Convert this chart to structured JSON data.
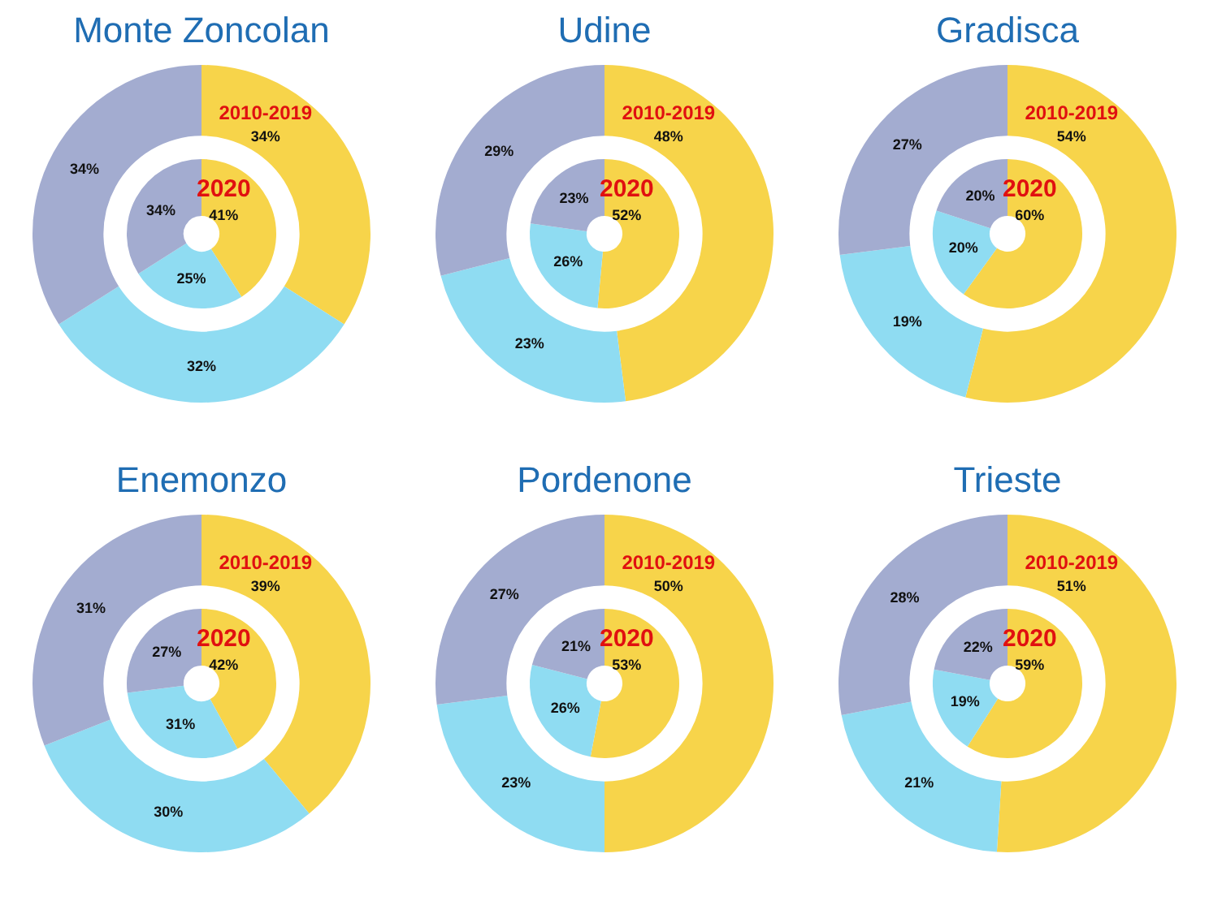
{
  "chart_data": [
    {
      "type": "donut",
      "title": "Monte Zoncolan",
      "categories": [
        null,
        null,
        null
      ],
      "series": [
        {
          "name": "2010-2019",
          "values": [
            34,
            32,
            34
          ],
          "value_labels": [
            "34%",
            "32%",
            "34%"
          ],
          "colors": [
            "#f7d44a",
            "#8fdcf2",
            "#a3acd0"
          ]
        },
        {
          "name": "2020",
          "values": [
            41,
            25,
            34
          ],
          "value_labels": [
            "41%",
            "25%",
            "34%"
          ],
          "colors": [
            "#f7d44a",
            "#8fdcf2",
            "#a3acd0"
          ]
        }
      ]
    },
    {
      "type": "donut",
      "title": "Udine",
      "categories": [
        null,
        null,
        null
      ],
      "series": [
        {
          "name": "2010-2019",
          "values": [
            48,
            23,
            29
          ],
          "value_labels": [
            "48%",
            "23%",
            "29%"
          ],
          "colors": [
            "#f7d44a",
            "#8fdcf2",
            "#a3acd0"
          ]
        },
        {
          "name": "2020",
          "values": [
            52,
            26,
            23
          ],
          "value_labels": [
            "52%",
            "26%",
            "23%"
          ],
          "colors": [
            "#f7d44a",
            "#8fdcf2",
            "#a3acd0"
          ]
        }
      ]
    },
    {
      "type": "donut",
      "title": "Gradisca",
      "categories": [
        null,
        null,
        null
      ],
      "series": [
        {
          "name": "2010-2019",
          "values": [
            54,
            19,
            27
          ],
          "value_labels": [
            "54%",
            "19%",
            "27%"
          ],
          "colors": [
            "#f7d44a",
            "#8fdcf2",
            "#a3acd0"
          ]
        },
        {
          "name": "2020",
          "values": [
            60,
            20,
            20
          ],
          "value_labels": [
            "60%",
            "20%",
            "20%"
          ],
          "colors": [
            "#f7d44a",
            "#8fdcf2",
            "#a3acd0"
          ]
        }
      ]
    },
    {
      "type": "donut",
      "title": "Enemonzo",
      "categories": [
        null,
        null,
        null
      ],
      "series": [
        {
          "name": "2010-2019",
          "values": [
            39,
            30,
            31
          ],
          "value_labels": [
            "39%",
            "30%",
            "31%"
          ],
          "colors": [
            "#f7d44a",
            "#8fdcf2",
            "#a3acd0"
          ]
        },
        {
          "name": "2020",
          "values": [
            42,
            31,
            27
          ],
          "value_labels": [
            "42%",
            "31%",
            "27%"
          ],
          "colors": [
            "#f7d44a",
            "#8fdcf2",
            "#a3acd0"
          ]
        }
      ]
    },
    {
      "type": "donut",
      "title": "Pordenone",
      "categories": [
        null,
        null,
        null
      ],
      "series": [
        {
          "name": "2010-2019",
          "values": [
            50,
            23,
            27
          ],
          "value_labels": [
            "50%",
            "23%",
            "27%"
          ],
          "colors": [
            "#f7d44a",
            "#8fdcf2",
            "#a3acd0"
          ]
        },
        {
          "name": "2020",
          "values": [
            53,
            26,
            21
          ],
          "value_labels": [
            "53%",
            "26%",
            "21%"
          ],
          "colors": [
            "#f7d44a",
            "#8fdcf2",
            "#a3acd0"
          ]
        }
      ]
    },
    {
      "type": "donut",
      "title": "Trieste",
      "categories": [
        null,
        null,
        null
      ],
      "series": [
        {
          "name": "2010-2019",
          "values": [
            51,
            21,
            28
          ],
          "value_labels": [
            "51%",
            "21%",
            "28%"
          ],
          "colors": [
            "#f7d44a",
            "#8fdcf2",
            "#a3acd0"
          ]
        },
        {
          "name": "2020",
          "values": [
            59,
            19,
            22
          ],
          "value_labels": [
            "59%",
            "19%",
            "22%"
          ],
          "colors": [
            "#f7d44a",
            "#8fdcf2",
            "#a3acd0"
          ]
        }
      ]
    }
  ]
}
